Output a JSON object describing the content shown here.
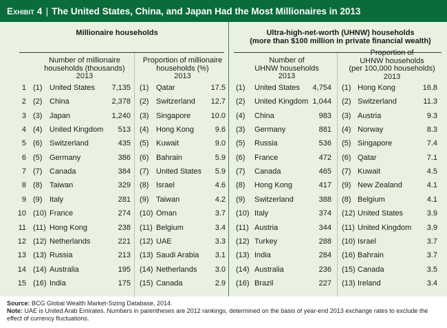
{
  "header": {
    "exhibit_label": "Exhibit 4",
    "separator": "|",
    "title": "The United States, China, and Japan Had the Most Millionaires in 2013"
  },
  "groups": {
    "millionaire": "Millionaire households",
    "uhnw_line1": "Ultra-high-net-worth (UHNW) households",
    "uhnw_line2": "(more than $100 million in private financial wealth)"
  },
  "columns": {
    "mill_number": {
      "line1": "Number of millionaire",
      "line2": "households (thousands)",
      "year": "2013"
    },
    "mill_proportion": {
      "line1": "Proportion of millionaire",
      "line2": "households (%)",
      "year": "2013"
    },
    "uhnw_number": {
      "line1": "Number of",
      "line2": "UHNW households",
      "year": "2013"
    },
    "uhnw_proportion": {
      "line1": "Proportion of",
      "line2": "UHNW households",
      "line3": "(per 100,000 households)",
      "year": "2013"
    }
  },
  "rows": [
    {
      "rank": "1",
      "m_prev": "(1)",
      "m_country": "United States",
      "m_value": "7,135",
      "p_prev": "(1)",
      "p_country": "Qatar",
      "p_value": "17.5",
      "u_prev": "(1)",
      "u_country": "United States",
      "u_value": "4,754",
      "q_prev": "(1)",
      "q_country": "Hong Kong",
      "q_value": "16.8"
    },
    {
      "rank": "2",
      "m_prev": "(2)",
      "m_country": "China",
      "m_value": "2,378",
      "p_prev": "(2)",
      "p_country": "Switzerland",
      "p_value": "12.7",
      "u_prev": "(2)",
      "u_country": "United Kingdom",
      "u_value": "1,044",
      "q_prev": "(2)",
      "q_country": "Switzerland",
      "q_value": "11.3"
    },
    {
      "rank": "3",
      "m_prev": "(3)",
      "m_country": "Japan",
      "m_value": "1,240",
      "p_prev": "(3)",
      "p_country": "Singapore",
      "p_value": "10.0",
      "u_prev": "(4)",
      "u_country": "China",
      "u_value": "983",
      "q_prev": "(3)",
      "q_country": "Austria",
      "q_value": "9.3"
    },
    {
      "rank": "4",
      "m_prev": "(4)",
      "m_country": "United Kingdom",
      "m_value": "513",
      "p_prev": "(4)",
      "p_country": "Hong Kong",
      "p_value": "9.6",
      "u_prev": "(3)",
      "u_country": "Germany",
      "u_value": "881",
      "q_prev": "(4)",
      "q_country": "Norway",
      "q_value": "8.3"
    },
    {
      "rank": "5",
      "m_prev": "(6)",
      "m_country": "Switzerland",
      "m_value": "435",
      "p_prev": "(5)",
      "p_country": "Kuwait",
      "p_value": "9.0",
      "u_prev": "(5)",
      "u_country": "Russia",
      "u_value": "536",
      "q_prev": "(5)",
      "q_country": "Singapore",
      "q_value": "7.4"
    },
    {
      "rank": "6",
      "m_prev": "(5)",
      "m_country": "Germany",
      "m_value": "386",
      "p_prev": "(6)",
      "p_country": "Bahrain",
      "p_value": "5.9",
      "u_prev": "(6)",
      "u_country": "France",
      "u_value": "472",
      "q_prev": "(6)",
      "q_country": "Qatar",
      "q_value": "7.1"
    },
    {
      "rank": "7",
      "m_prev": "(7)",
      "m_country": "Canada",
      "m_value": "384",
      "p_prev": "(7)",
      "p_country": "United States",
      "p_value": "5.9",
      "u_prev": "(7)",
      "u_country": "Canada",
      "u_value": "465",
      "q_prev": "(7)",
      "q_country": "Kuwait",
      "q_value": "4.5"
    },
    {
      "rank": "8",
      "m_prev": "(8)",
      "m_country": "Taiwan",
      "m_value": "329",
      "p_prev": "(8)",
      "p_country": "Israel",
      "p_value": "4.6",
      "u_prev": "(8)",
      "u_country": "Hong Kong",
      "u_value": "417",
      "q_prev": "(9)",
      "q_country": "New Zealand",
      "q_value": "4.1"
    },
    {
      "rank": "9",
      "m_prev": "(9)",
      "m_country": "Italy",
      "m_value": "281",
      "p_prev": "(9)",
      "p_country": "Taiwan",
      "p_value": "4.2",
      "u_prev": "(9)",
      "u_country": "Switzerland",
      "u_value": "388",
      "q_prev": "(8)",
      "q_country": "Belgium",
      "q_value": "4.1"
    },
    {
      "rank": "10",
      "m_prev": "(10)",
      "m_country": "France",
      "m_value": "274",
      "p_prev": "(10)",
      "p_country": "Oman",
      "p_value": "3.7",
      "u_prev": "(10)",
      "u_country": "Italy",
      "u_value": "374",
      "q_prev": "(12)",
      "q_country": "United States",
      "q_value": "3.9"
    },
    {
      "rank": "11",
      "m_prev": "(11)",
      "m_country": "Hong Kong",
      "m_value": "238",
      "p_prev": "(11)",
      "p_country": "Belgium",
      "p_value": "3.4",
      "u_prev": "(11)",
      "u_country": "Austria",
      "u_value": "344",
      "q_prev": "(11)",
      "q_country": "United Kingdom",
      "q_value": "3.9"
    },
    {
      "rank": "12",
      "m_prev": "(12)",
      "m_country": "Netherlands",
      "m_value": "221",
      "p_prev": "(12)",
      "p_country": "UAE",
      "p_value": "3.3",
      "u_prev": "(12)",
      "u_country": "Turkey",
      "u_value": "288",
      "q_prev": "(10)",
      "q_country": "Israel",
      "q_value": "3.7"
    },
    {
      "rank": "13",
      "m_prev": "(13)",
      "m_country": "Russia",
      "m_value": "213",
      "p_prev": "(13)",
      "p_country": "Saudi Arabia",
      "p_value": "3.1",
      "u_prev": "(13)",
      "u_country": "India",
      "u_value": "284",
      "q_prev": "(16)",
      "q_country": "Bahrain",
      "q_value": "3.7"
    },
    {
      "rank": "14",
      "m_prev": "(14)",
      "m_country": "Australia",
      "m_value": "195",
      "p_prev": "(14)",
      "p_country": "Netherlands",
      "p_value": "3.0",
      "u_prev": "(14)",
      "u_country": "Australia",
      "u_value": "236",
      "q_prev": "(15)",
      "q_country": "Canada",
      "q_value": "3.5"
    },
    {
      "rank": "15",
      "m_prev": "(16)",
      "m_country": "India",
      "m_value": "175",
      "p_prev": "(15)",
      "p_country": "Canada",
      "p_value": "2.9",
      "u_prev": "(16)",
      "u_country": "Brazil",
      "u_value": "227",
      "q_prev": "(13)",
      "q_country": "Ireland",
      "q_value": "3.4"
    }
  ],
  "footnotes": {
    "source_label": "Source:",
    "source_text": "BCG Global Wealth Market-Sizing Database, 2014.",
    "note_label": "Note:",
    "note_text": "UAE is United Arab Emirates. Numbers in parentheses are 2012 rankings, determined on the basis of year-end 2013 exchange rates to exclude the effect of currency fluctuations."
  },
  "colors": {
    "header_bg": "#0a6c3b",
    "panel_bg": "#eaf1e1",
    "divider": "#3c7a7e"
  }
}
